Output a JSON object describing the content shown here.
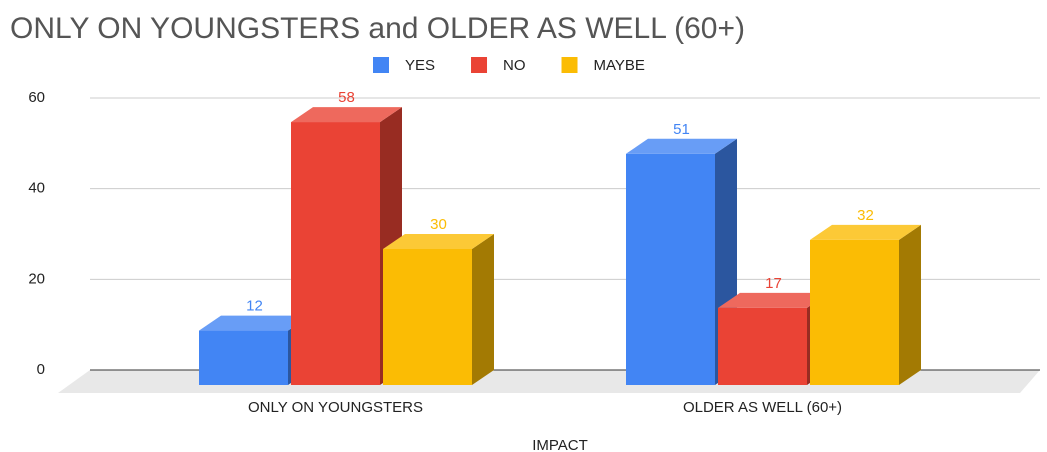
{
  "chart_data": {
    "type": "bar3d",
    "title": "ONLY ON YOUNGSTERS and OLDER AS WELL (60+)",
    "categories": [
      "ONLY ON YOUNGSTERS",
      "OLDER AS WELL (60+)"
    ],
    "x_label": "IMPACT",
    "series": [
      {
        "name": "YES",
        "color": "#4285f4",
        "values": [
          12,
          51
        ]
      },
      {
        "name": "NO",
        "color": "#ea4335",
        "values": [
          58,
          17
        ]
      },
      {
        "name": "MAYBE",
        "color": "#fbbc04",
        "values": [
          30,
          32
        ]
      }
    ],
    "ylim": [
      0,
      60
    ],
    "yticks": [
      0,
      20,
      40,
      60
    ],
    "grid": true,
    "legend": "top"
  }
}
